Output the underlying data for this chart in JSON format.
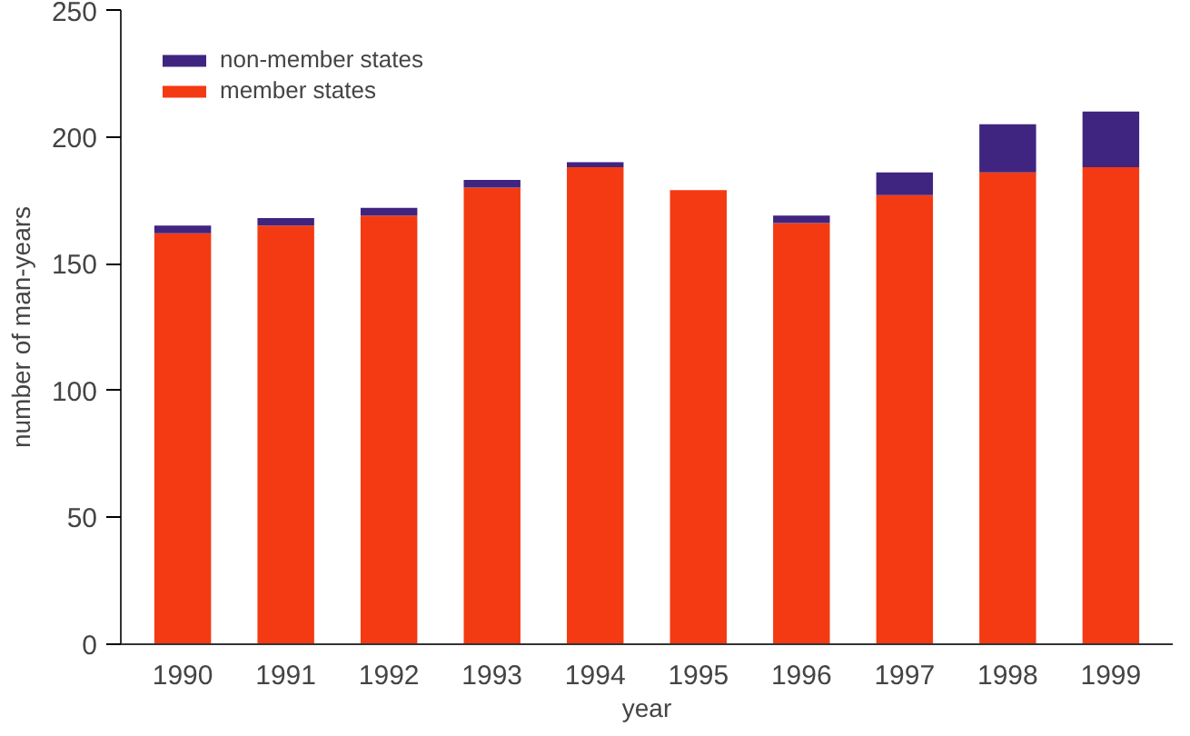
{
  "chart_data": {
    "type": "bar",
    "stacked": true,
    "xlabel": "year",
    "ylabel": "number of man-years",
    "categories": [
      "1990",
      "1991",
      "1992",
      "1993",
      "1994",
      "1995",
      "1996",
      "1997",
      "1998",
      "1999"
    ],
    "series": [
      {
        "name": "member states",
        "color": "#f43a12",
        "values": [
          162,
          165,
          169,
          180,
          188,
          179,
          166,
          177,
          186,
          188
        ]
      },
      {
        "name": "non-member states",
        "color": "#3f2580",
        "values": [
          3,
          3,
          3,
          3,
          2,
          0,
          3,
          9,
          19,
          22
        ]
      }
    ],
    "ylim": [
      0,
      250
    ],
    "yticks": [
      0,
      50,
      100,
      150,
      200,
      250
    ],
    "grid": false,
    "legend": "top left"
  }
}
